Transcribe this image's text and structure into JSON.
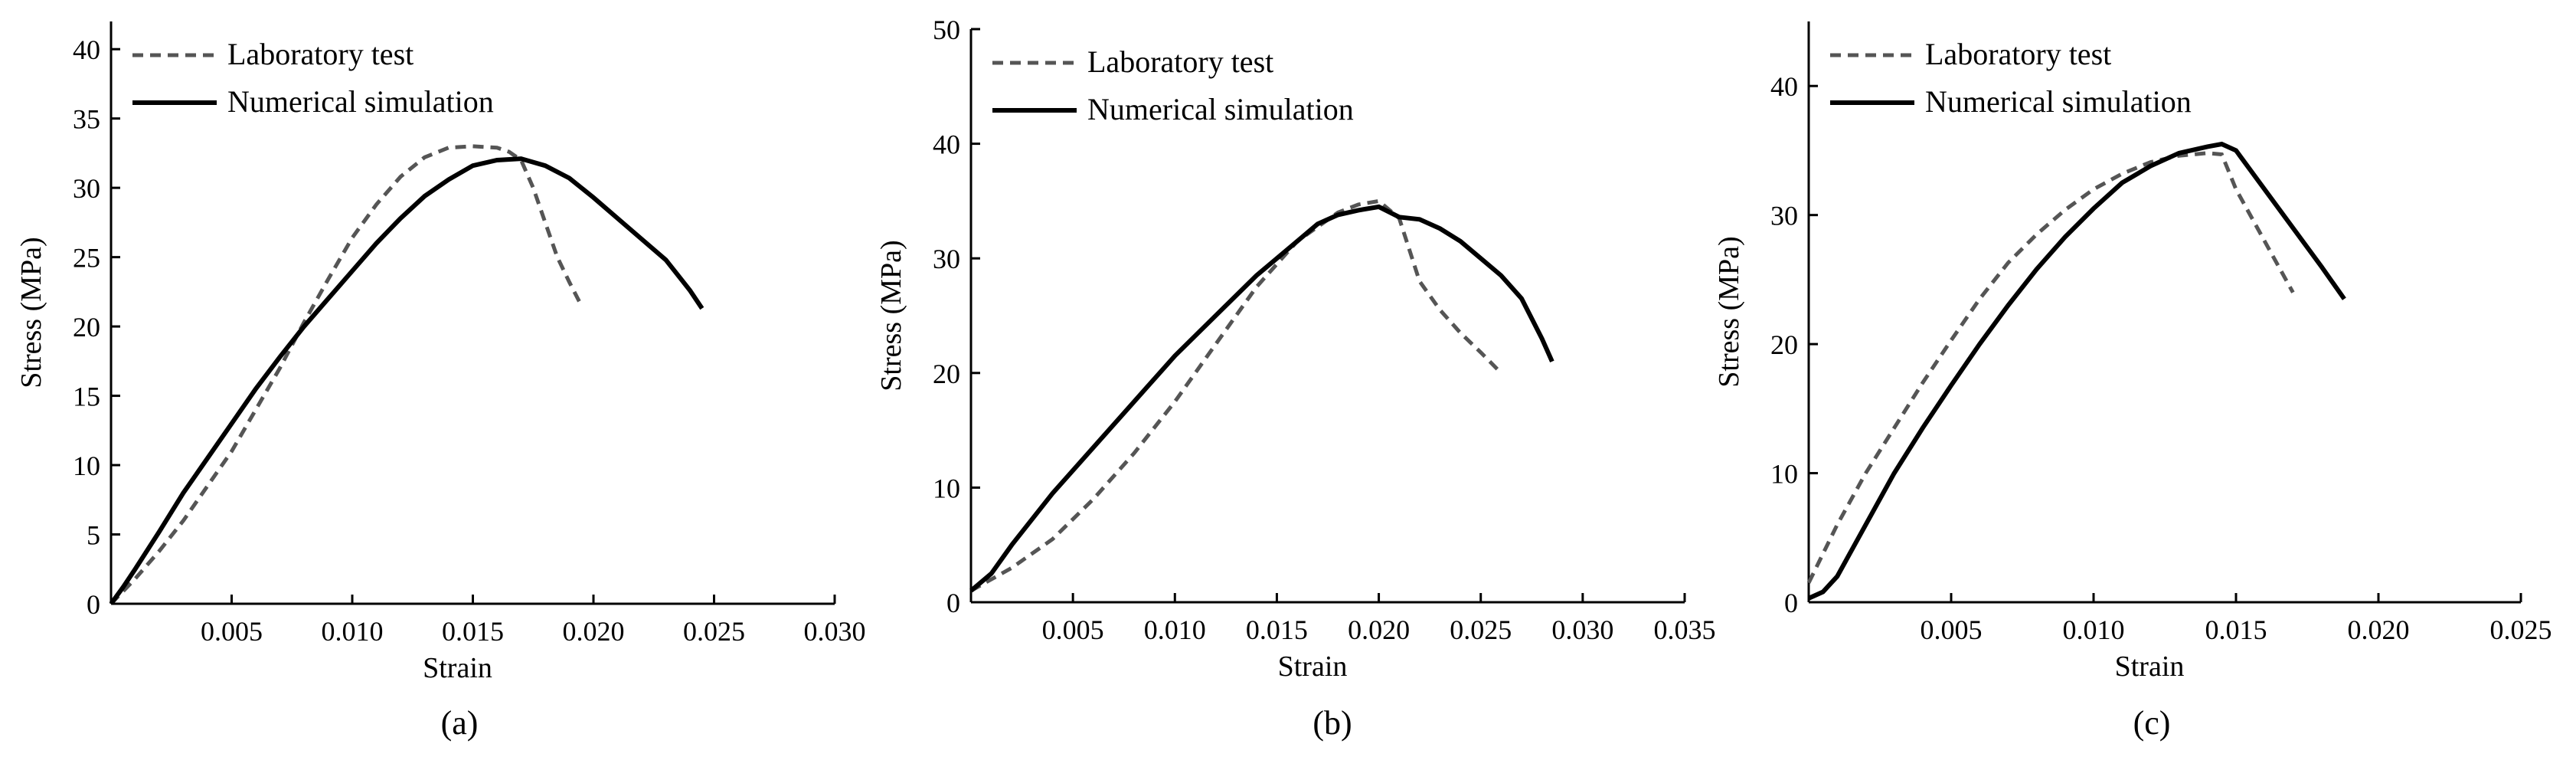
{
  "chart_data": [
    {
      "type": "line",
      "caption": "(a)",
      "xlabel": "Strain",
      "ylabel": "Stress (MPa)",
      "xlim": [
        0,
        0.03
      ],
      "ylim": [
        0,
        42
      ],
      "xticks": [
        0.005,
        0.01,
        0.015,
        0.02,
        0.025,
        0.03
      ],
      "xtick_labels": [
        "0.005",
        "0.010",
        "0.015",
        "0.020",
        "0.025",
        "0.030"
      ],
      "yticks": [
        0,
        5,
        10,
        15,
        20,
        25,
        30,
        35,
        40
      ],
      "ytick_labels": [
        "0",
        "5",
        "10",
        "15",
        "20",
        "25",
        "30",
        "35",
        "40"
      ],
      "legend_position": "top-left",
      "series": [
        {
          "name": "Laboratory test",
          "style": "dashed",
          "color": "#555555",
          "x": [
            0,
            0.001,
            0.002,
            0.003,
            0.004,
            0.005,
            0.006,
            0.007,
            0.008,
            0.009,
            0.01,
            0.011,
            0.012,
            0.013,
            0.014,
            0.015,
            0.016,
            0.0165,
            0.017,
            0.0175,
            0.018,
            0.0185,
            0.019,
            0.0195
          ],
          "y": [
            0,
            1.8,
            3.8,
            6.0,
            8.5,
            11.0,
            14.0,
            17.0,
            20.3,
            23.4,
            26.4,
            28.8,
            30.8,
            32.2,
            32.9,
            33.0,
            32.9,
            32.6,
            32.0,
            30.0,
            27.5,
            25.0,
            23.2,
            21.5
          ]
        },
        {
          "name": "Numerical simulation",
          "style": "solid",
          "color": "#000000",
          "x": [
            0,
            0.0005,
            0.001,
            0.002,
            0.003,
            0.004,
            0.005,
            0.006,
            0.007,
            0.008,
            0.009,
            0.01,
            0.011,
            0.012,
            0.013,
            0.014,
            0.015,
            0.016,
            0.017,
            0.018,
            0.019,
            0.02,
            0.021,
            0.022,
            0.023,
            0.024,
            0.0245
          ],
          "y": [
            0,
            1.2,
            2.5,
            5.2,
            8.0,
            10.5,
            13.0,
            15.5,
            17.8,
            20.0,
            22.0,
            24.0,
            26.0,
            27.8,
            29.4,
            30.6,
            31.6,
            32.0,
            32.1,
            31.6,
            30.7,
            29.3,
            27.8,
            26.3,
            24.8,
            22.6,
            21.3
          ]
        }
      ]
    },
    {
      "type": "line",
      "caption": "(b)",
      "xlabel": "Strain",
      "ylabel": "Stress (MPa)",
      "xlim": [
        0,
        0.035
      ],
      "ylim": [
        0,
        50
      ],
      "xticks": [
        0.005,
        0.01,
        0.015,
        0.02,
        0.025,
        0.03,
        0.035
      ],
      "xtick_labels": [
        "0.005",
        "0.010",
        "0.015",
        "0.020",
        "0.025",
        "0.030",
        "0.035"
      ],
      "yticks": [
        0,
        10,
        20,
        30,
        40,
        50
      ],
      "ytick_labels": [
        "0",
        "10",
        "20",
        "30",
        "40",
        "50"
      ],
      "legend_position": "top-left",
      "series": [
        {
          "name": "Laboratory test",
          "style": "dashed",
          "color": "#555555",
          "x": [
            0,
            0.002,
            0.004,
            0.006,
            0.008,
            0.01,
            0.012,
            0.014,
            0.016,
            0.018,
            0.019,
            0.02,
            0.021,
            0.022,
            0.023,
            0.024,
            0.025,
            0.026
          ],
          "y": [
            1.0,
            3.0,
            5.5,
            9.0,
            13.0,
            17.5,
            22.5,
            27.5,
            31.5,
            34.0,
            34.7,
            35.0,
            33.5,
            28.0,
            25.5,
            23.5,
            21.8,
            20.0
          ]
        },
        {
          "name": "Numerical simulation",
          "style": "solid",
          "color": "#000000",
          "x": [
            0,
            0.001,
            0.002,
            0.004,
            0.006,
            0.008,
            0.01,
            0.012,
            0.014,
            0.016,
            0.017,
            0.018,
            0.019,
            0.02,
            0.021,
            0.022,
            0.023,
            0.024,
            0.025,
            0.026,
            0.027,
            0.028,
            0.0285
          ],
          "y": [
            1.0,
            2.5,
            5.0,
            9.5,
            13.5,
            17.5,
            21.5,
            25.0,
            28.5,
            31.5,
            33.0,
            33.8,
            34.2,
            34.5,
            33.6,
            33.4,
            32.6,
            31.5,
            30.0,
            28.5,
            26.5,
            23.0,
            21.0
          ]
        }
      ]
    },
    {
      "type": "line",
      "caption": "(c)",
      "xlabel": "Strain",
      "ylabel": "Stress (MPa)",
      "xlim": [
        0,
        0.025
      ],
      "ylim": [
        0,
        45
      ],
      "xticks": [
        0.005,
        0.01,
        0.015,
        0.02,
        0.025
      ],
      "xtick_labels": [
        "0.005",
        "0.010",
        "0.015",
        "0.020",
        "0.025"
      ],
      "yticks": [
        0,
        10,
        20,
        30,
        40
      ],
      "ytick_labels": [
        "0",
        "10",
        "20",
        "30",
        "40"
      ],
      "legend_position": "top-left",
      "series": [
        {
          "name": "Laboratory test",
          "style": "dashed",
          "color": "#555555",
          "x": [
            0,
            0.001,
            0.002,
            0.003,
            0.004,
            0.005,
            0.006,
            0.007,
            0.008,
            0.009,
            0.01,
            0.011,
            0.012,
            0.013,
            0.014,
            0.0145,
            0.015,
            0.016,
            0.017
          ],
          "y": [
            1.5,
            6.0,
            10.0,
            13.5,
            17.0,
            20.3,
            23.5,
            26.3,
            28.5,
            30.4,
            32.0,
            33.2,
            34.1,
            34.6,
            34.8,
            34.7,
            32.0,
            28.0,
            24.0
          ]
        },
        {
          "name": "Numerical simulation",
          "style": "solid",
          "color": "#000000",
          "x": [
            0,
            0.0005,
            0.001,
            0.002,
            0.003,
            0.004,
            0.005,
            0.006,
            0.007,
            0.008,
            0.009,
            0.01,
            0.011,
            0.012,
            0.013,
            0.014,
            0.0145,
            0.015,
            0.016,
            0.017,
            0.018,
            0.0188
          ],
          "y": [
            0.3,
            0.8,
            2.0,
            6.0,
            10.0,
            13.5,
            16.8,
            20.0,
            23.0,
            25.8,
            28.3,
            30.5,
            32.5,
            33.8,
            34.8,
            35.3,
            35.5,
            35.0,
            32.0,
            29.0,
            26.0,
            23.5
          ]
        }
      ]
    }
  ]
}
